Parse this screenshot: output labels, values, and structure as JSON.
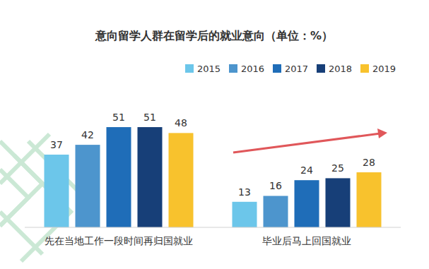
{
  "chart_data": {
    "type": "bar",
    "title": "意向留学人群在留学后的就业意向（单位：%）",
    "categories": [
      "先在当地工作一段时间再归国就业",
      "毕业后马上回国就业"
    ],
    "series": [
      {
        "name": "2015",
        "color": "#6cc6ea",
        "values": [
          37,
          13
        ]
      },
      {
        "name": "2016",
        "color": "#4d95cd",
        "values": [
          42,
          16
        ]
      },
      {
        "name": "2017",
        "color": "#1f6db8",
        "values": [
          51,
          24
        ]
      },
      {
        "name": "2018",
        "color": "#173f78",
        "values": [
          51,
          25
        ]
      },
      {
        "name": "2019",
        "color": "#f8c22d",
        "values": [
          48,
          28
        ]
      }
    ],
    "ylim": [
      0,
      60
    ],
    "grid": false,
    "legend": "top-right",
    "data_labels": true,
    "tick_labels": "x"
  }
}
